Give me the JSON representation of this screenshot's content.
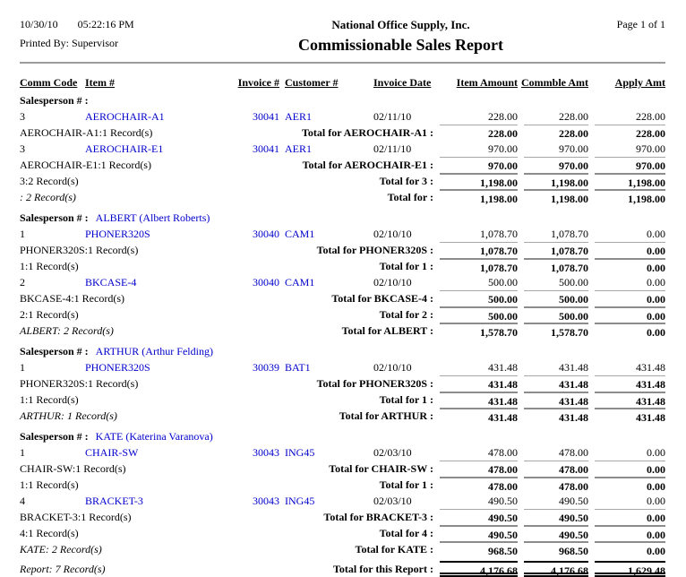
{
  "header": {
    "date": "10/30/10",
    "time": "05:22:16 PM",
    "printed_by": "Printed By: Supervisor",
    "company": "National Office Supply, Inc.",
    "page": "Page 1 of 1",
    "title": "Commissionable Sales Report"
  },
  "columns": [
    "Comm Code",
    "Item #",
    "Invoice #",
    "Customer #",
    "Invoice Date",
    "Item Amount",
    "Commble Amt",
    "Apply Amt"
  ],
  "colors": {
    "link_blue": "#0000cc",
    "subtotal_line_gray": "#8c8c8c",
    "header_rule_gray": "#9c9c9c",
    "report_total_line": "#000000"
  },
  "rows": [
    {
      "type": "salesperson",
      "label": "Salesperson # :",
      "value": ""
    },
    {
      "type": "data",
      "comm": "3",
      "item": "AEROCHAIR-A1",
      "invoice": "30041",
      "customer": "AER1",
      "date": "02/11/10",
      "amount": "228.00",
      "commble": "228.00",
      "apply": "228.00"
    },
    {
      "type": "total",
      "level": "item",
      "left": "AEROCHAIR-A1:1 Record(s)",
      "label": "Total for AEROCHAIR-A1 :",
      "amount": "228.00",
      "commble": "228.00",
      "apply": "228.00"
    },
    {
      "type": "data",
      "comm": "3",
      "item": "AEROCHAIR-E1",
      "invoice": "30041",
      "customer": "AER1",
      "date": "02/11/10",
      "amount": "970.00",
      "commble": "970.00",
      "apply": "970.00"
    },
    {
      "type": "total",
      "level": "item",
      "left": "AEROCHAIR-E1:1 Record(s)",
      "label": "Total for AEROCHAIR-E1 :",
      "amount": "970.00",
      "commble": "970.00",
      "apply": "970.00"
    },
    {
      "type": "total",
      "level": "group",
      "left": "3:2 Record(s)",
      "label": "Total for 3 :",
      "amount": "1,198.00",
      "commble": "1,198.00",
      "apply": "1,198.00"
    },
    {
      "type": "total",
      "level": "sales",
      "left": ": 2 Record(s)",
      "label": "Total for :",
      "amount": "1,198.00",
      "commble": "1,198.00",
      "apply": "1,198.00"
    },
    {
      "type": "salesperson",
      "label": "Salesperson # :",
      "value": "ALBERT (Albert Roberts)"
    },
    {
      "type": "data",
      "comm": "1",
      "item": "PHONER320S",
      "invoice": "30040",
      "customer": "CAM1",
      "date": "02/10/10",
      "amount": "1,078.70",
      "commble": "1,078.70",
      "apply": "0.00"
    },
    {
      "type": "total",
      "level": "item",
      "left": "PHONER320S:1 Record(s)",
      "label": "Total for PHONER320S :",
      "amount": "1,078.70",
      "commble": "1,078.70",
      "apply": "0.00"
    },
    {
      "type": "total",
      "level": "group",
      "left": "1:1 Record(s)",
      "label": "Total for 1 :",
      "amount": "1,078.70",
      "commble": "1,078.70",
      "apply": "0.00"
    },
    {
      "type": "data",
      "comm": "2",
      "item": "BKCASE-4",
      "invoice": "30040",
      "customer": "CAM1",
      "date": "02/10/10",
      "amount": "500.00",
      "commble": "500.00",
      "apply": "0.00"
    },
    {
      "type": "total",
      "level": "item",
      "left": "BKCASE-4:1 Record(s)",
      "label": "Total for BKCASE-4 :",
      "amount": "500.00",
      "commble": "500.00",
      "apply": "0.00"
    },
    {
      "type": "total",
      "level": "group",
      "left": "2:1 Record(s)",
      "label": "Total for 2 :",
      "amount": "500.00",
      "commble": "500.00",
      "apply": "0.00"
    },
    {
      "type": "total",
      "level": "sales",
      "left": "ALBERT: 2 Record(s)",
      "label": "Total for ALBERT :",
      "amount": "1,578.70",
      "commble": "1,578.70",
      "apply": "0.00"
    },
    {
      "type": "salesperson",
      "label": "Salesperson # :",
      "value": "ARTHUR (Arthur Felding)"
    },
    {
      "type": "data",
      "comm": "1",
      "item": "PHONER320S",
      "invoice": "30039",
      "customer": "BAT1",
      "date": "02/10/10",
      "amount": "431.48",
      "commble": "431.48",
      "apply": "431.48"
    },
    {
      "type": "total",
      "level": "item",
      "left": "PHONER320S:1 Record(s)",
      "label": "Total for PHONER320S :",
      "amount": "431.48",
      "commble": "431.48",
      "apply": "431.48"
    },
    {
      "type": "total",
      "level": "group",
      "left": "1:1 Record(s)",
      "label": "Total for 1 :",
      "amount": "431.48",
      "commble": "431.48",
      "apply": "431.48"
    },
    {
      "type": "total",
      "level": "sales",
      "left": "ARTHUR: 1 Record(s)",
      "label": "Total for ARTHUR :",
      "amount": "431.48",
      "commble": "431.48",
      "apply": "431.48"
    },
    {
      "type": "salesperson",
      "label": "Salesperson # :",
      "value": "KATE (Katerina Varanova)"
    },
    {
      "type": "data",
      "comm": "1",
      "item": "CHAIR-SW",
      "invoice": "30043",
      "customer": "ING45",
      "date": "02/03/10",
      "amount": "478.00",
      "commble": "478.00",
      "apply": "0.00"
    },
    {
      "type": "total",
      "level": "item",
      "left": "CHAIR-SW:1 Record(s)",
      "label": "Total for CHAIR-SW :",
      "amount": "478.00",
      "commble": "478.00",
      "apply": "0.00"
    },
    {
      "type": "total",
      "level": "group",
      "left": "1:1 Record(s)",
      "label": "Total for 1 :",
      "amount": "478.00",
      "commble": "478.00",
      "apply": "0.00"
    },
    {
      "type": "data",
      "comm": "4",
      "item": "BRACKET-3",
      "invoice": "30043",
      "customer": "ING45",
      "date": "02/03/10",
      "amount": "490.50",
      "commble": "490.50",
      "apply": "0.00"
    },
    {
      "type": "total",
      "level": "item",
      "left": "BRACKET-3:1 Record(s)",
      "label": "Total for BRACKET-3 :",
      "amount": "490.50",
      "commble": "490.50",
      "apply": "0.00"
    },
    {
      "type": "total",
      "level": "group",
      "left": "4:1 Record(s)",
      "label": "Total for 4 :",
      "amount": "490.50",
      "commble": "490.50",
      "apply": "0.00"
    },
    {
      "type": "total",
      "level": "sales",
      "left": "KATE: 2 Record(s)",
      "label": "Total for KATE :",
      "amount": "968.50",
      "commble": "968.50",
      "apply": "0.00"
    },
    {
      "type": "total",
      "level": "report",
      "left": "Report: 7 Record(s)",
      "label": "Total for this Report :",
      "amount": "4,176.68",
      "commble": "4,176.68",
      "apply": "1,629.48"
    }
  ]
}
